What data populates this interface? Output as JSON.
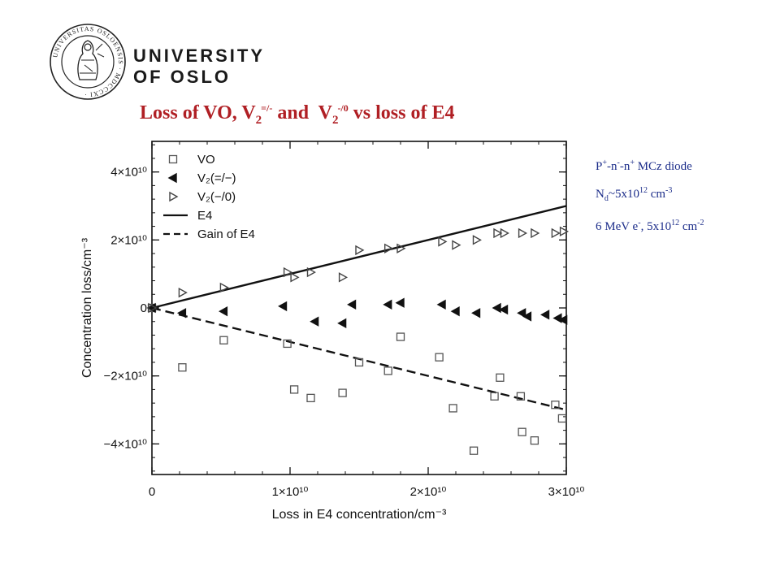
{
  "header": {
    "university_line1": "UNIVERSITY",
    "university_line2": "OF OSLO",
    "seal_text": "UNIVERSITAS OSLOENSIS MDCCCXI"
  },
  "title": {
    "part1": "Loss of VO, V",
    "sub1": "2",
    "sup1": "=/-",
    "part2": " and  V",
    "sub2": "2",
    "sup2": "-/0",
    "part3": " vs loss of E4",
    "color": "#b01f24"
  },
  "info": {
    "line1_a": "P",
    "line1_sup1": "+",
    "line1_b": "-n",
    "line1_sup2": "-",
    "line1_c": "-n",
    "line1_sup3": "+",
    "line1_d": " MCz diode",
    "line2_a": "N",
    "line2_sub": "d",
    "line2_b": "~5x10",
    "line2_sup1": "12",
    "line2_c": " cm",
    "line2_sup2": "-3",
    "line3_a": "6 MeV e",
    "line3_sup1": "-",
    "line3_b": ", 5x10",
    "line3_sup2": "12",
    "line3_c": " cm",
    "line3_sup3": "-2",
    "color": "#1c2d8a"
  },
  "chart_data": {
    "type": "scatter",
    "xlabel": "Loss in E4 concentration/cm⁻³",
    "ylabel": "Concentration loss/cm⁻³",
    "xlim": [
      0,
      30000000000.0
    ],
    "ylim": [
      -49000000000.0,
      49000000000.0
    ],
    "x_ticks": [
      {
        "value": 0,
        "label": "0"
      },
      {
        "value": 10000000000.0,
        "label": "1×10¹⁰"
      },
      {
        "value": 20000000000.0,
        "label": "2×10¹⁰"
      },
      {
        "value": 30000000000.0,
        "label": "3×10¹⁰"
      }
    ],
    "y_ticks": [
      {
        "value": 40000000000.0,
        "label": "4×10¹⁰"
      },
      {
        "value": 20000000000.0,
        "label": "2×10¹⁰"
      },
      {
        "value": 0,
        "label": "0"
      },
      {
        "value": -20000000000.0,
        "label": "−2×10¹⁰"
      },
      {
        "value": -40000000000.0,
        "label": "−4×10¹⁰"
      }
    ],
    "legend_position": "top-left",
    "legend": [
      {
        "label": "VO",
        "marker": "square"
      },
      {
        "label": "V₂(=/−)",
        "marker": "triangle-left"
      },
      {
        "label": "V₂(−/0)",
        "marker": "triangle-right"
      },
      {
        "label": "E4",
        "marker": "solid-line"
      },
      {
        "label": "Gain of E4",
        "marker": "dashed-line"
      }
    ],
    "series": [
      {
        "name": "VO",
        "marker": "square",
        "points": [
          [
            0,
            0
          ],
          [
            2200000000.0,
            -17500000000.0
          ],
          [
            5200000000.0,
            -9500000000.0
          ],
          [
            9800000000.0,
            -10500000000.0
          ],
          [
            10300000000.0,
            -24000000000.0
          ],
          [
            11500000000.0,
            -26500000000.0
          ],
          [
            13800000000.0,
            -25000000000.0
          ],
          [
            15000000000.0,
            -16000000000.0
          ],
          [
            17100000000.0,
            -18500000000.0
          ],
          [
            18000000000.0,
            -8500000000.0
          ],
          [
            20800000000.0,
            -14500000000.0
          ],
          [
            21800000000.0,
            -29500000000.0
          ],
          [
            23300000000.0,
            -42000000000.0
          ],
          [
            24800000000.0,
            -26000000000.0
          ],
          [
            25200000000.0,
            -20500000000.0
          ],
          [
            26700000000.0,
            -26000000000.0
          ],
          [
            26800000000.0,
            -36500000000.0
          ],
          [
            27700000000.0,
            -39000000000.0
          ],
          [
            29200000000.0,
            -28500000000.0
          ],
          [
            29700000000.0,
            -32500000000.0
          ]
        ]
      },
      {
        "name": "V₂(=/−)",
        "marker": "triangle-left",
        "points": [
          [
            0,
            0
          ],
          [
            2200000000.0,
            -1500000000.0
          ],
          [
            5200000000.0,
            -1000000000.0
          ],
          [
            9500000000.0,
            500000000.0
          ],
          [
            11800000000.0,
            -4000000000.0
          ],
          [
            13800000000.0,
            -4500000000.0
          ],
          [
            14500000000.0,
            1000000000.0
          ],
          [
            17100000000.0,
            1000000000.0
          ],
          [
            18000000000.0,
            1500000000.0
          ],
          [
            21000000000.0,
            1000000000.0
          ],
          [
            22000000000.0,
            -1000000000.0
          ],
          [
            23500000000.0,
            -1500000000.0
          ],
          [
            25000000000.0,
            0.0
          ],
          [
            25500000000.0,
            -500000000.0
          ],
          [
            26800000000.0,
            -1500000000.0
          ],
          [
            27200000000.0,
            -2500000000.0
          ],
          [
            28500000000.0,
            -2000000000.0
          ],
          [
            29400000000.0,
            -3000000000.0
          ],
          [
            29800000000.0,
            -3500000000.0
          ]
        ]
      },
      {
        "name": "V₂(−/0)",
        "marker": "triangle-right",
        "points": [
          [
            0,
            0
          ],
          [
            2200000000.0,
            4500000000.0
          ],
          [
            5200000000.0,
            6000000000.0
          ],
          [
            9800000000.0,
            10500000000.0
          ],
          [
            10300000000.0,
            9000000000.0
          ],
          [
            11500000000.0,
            10500000000.0
          ],
          [
            13800000000.0,
            9000000000.0
          ],
          [
            15000000000.0,
            17000000000.0
          ],
          [
            17100000000.0,
            17500000000.0
          ],
          [
            18000000000.0,
            17500000000.0
          ],
          [
            21000000000.0,
            19500000000.0
          ],
          [
            22000000000.0,
            18500000000.0
          ],
          [
            23500000000.0,
            20000000000.0
          ],
          [
            25000000000.0,
            22000000000.0
          ],
          [
            25500000000.0,
            22000000000.0
          ],
          [
            26800000000.0,
            22000000000.0
          ],
          [
            27700000000.0,
            22000000000.0
          ],
          [
            29200000000.0,
            22000000000.0
          ],
          [
            29800000000.0,
            22500000000.0
          ]
        ]
      }
    ],
    "lines": [
      {
        "name": "E4",
        "style": "solid",
        "points": [
          [
            0,
            0
          ],
          [
            30000000000.0,
            30000000000.0
          ]
        ]
      },
      {
        "name": "Gain of E4",
        "style": "dashed",
        "points": [
          [
            0,
            0
          ],
          [
            30000000000.0,
            -30000000000.0
          ]
        ]
      }
    ]
  }
}
